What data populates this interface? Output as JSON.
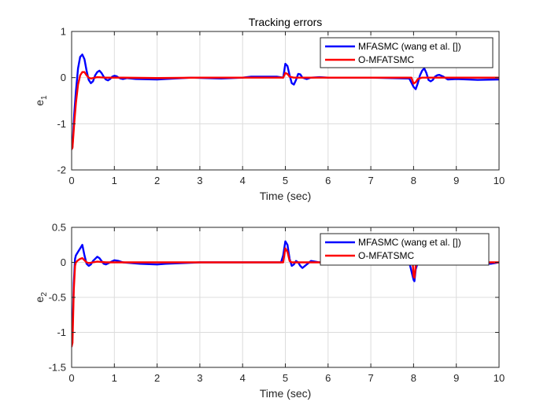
{
  "chart_data": [
    {
      "type": "line",
      "title": "Tracking errors",
      "xlabel": "Time (sec)",
      "ylabel": "e",
      "ylabel_sub": "1",
      "xlim": [
        0,
        10
      ],
      "ylim": [
        -2,
        1
      ],
      "xticks": [
        0,
        1,
        2,
        3,
        4,
        5,
        6,
        7,
        8,
        9,
        10
      ],
      "yticks": [
        -2,
        -1,
        0,
        1
      ],
      "grid": true,
      "legend_position": "top-right",
      "series": [
        {
          "name": "MFASMC (wang et al. [])",
          "color": "#0000ff",
          "x": [
            0,
            0.02,
            0.06,
            0.1,
            0.15,
            0.2,
            0.25,
            0.3,
            0.35,
            0.4,
            0.45,
            0.5,
            0.55,
            0.6,
            0.65,
            0.7,
            0.75,
            0.8,
            0.85,
            0.9,
            0.95,
            1.0,
            1.05,
            1.1,
            1.15,
            1.2,
            1.3,
            1.5,
            2.0,
            2.2,
            2.8,
            3.5,
            4.0,
            4.2,
            4.8,
            4.95,
            5.0,
            5.05,
            5.1,
            5.15,
            5.2,
            5.25,
            5.3,
            5.35,
            5.4,
            5.5,
            5.6,
            5.8,
            6.0,
            7.0,
            7.9,
            8.0,
            8.05,
            8.1,
            8.15,
            8.2,
            8.25,
            8.3,
            8.35,
            8.4,
            8.45,
            8.5,
            8.55,
            8.6,
            8.7,
            8.8,
            9.0,
            9.5,
            10.0
          ],
          "values": [
            -1.55,
            -1.5,
            -0.8,
            -0.3,
            0.2,
            0.45,
            0.5,
            0.4,
            0.15,
            -0.05,
            -0.12,
            -0.08,
            0.05,
            0.12,
            0.15,
            0.1,
            0.02,
            -0.04,
            -0.06,
            -0.03,
            0.02,
            0.04,
            0.03,
            0.0,
            -0.02,
            -0.03,
            -0.01,
            -0.03,
            -0.04,
            -0.03,
            0.0,
            -0.02,
            0.0,
            0.02,
            0.02,
            0.0,
            0.3,
            0.25,
            0.05,
            -0.12,
            -0.15,
            -0.05,
            0.08,
            0.07,
            0.0,
            -0.03,
            0.0,
            0.01,
            0.0,
            0.0,
            -0.02,
            -0.2,
            -0.25,
            -0.12,
            0.05,
            0.15,
            0.2,
            0.1,
            -0.05,
            -0.08,
            -0.05,
            0.02,
            0.05,
            0.06,
            0.02,
            -0.04,
            -0.03,
            -0.05,
            -0.04
          ]
        },
        {
          "name": "O-MFATSMC",
          "color": "#ff0000",
          "x": [
            0,
            0.02,
            0.06,
            0.1,
            0.15,
            0.2,
            0.25,
            0.3,
            0.35,
            0.4,
            0.45,
            0.5,
            0.6,
            0.8,
            1.0,
            1.2,
            2.0,
            3.0,
            4.0,
            4.95,
            5.0,
            5.05,
            5.1,
            5.2,
            5.3,
            6.0,
            7.0,
            7.95,
            8.0,
            8.05,
            8.1,
            8.2,
            9.0,
            10.0
          ],
          "values": [
            -1.55,
            -1.52,
            -1.0,
            -0.55,
            -0.15,
            0.05,
            0.12,
            0.12,
            0.05,
            0.0,
            -0.02,
            -0.01,
            0.01,
            0.0,
            0.0,
            0.0,
            -0.01,
            0.0,
            0.0,
            0.0,
            0.1,
            0.08,
            0.02,
            0.0,
            0.0,
            0.0,
            0.0,
            0.0,
            -0.13,
            -0.1,
            -0.03,
            0.0,
            0.0,
            0.0
          ]
        }
      ]
    },
    {
      "type": "line",
      "title": "",
      "xlabel": "Time (sec)",
      "ylabel": "e",
      "ylabel_sub": "2",
      "xlim": [
        0,
        10
      ],
      "ylim": [
        -1.5,
        0.5
      ],
      "xticks": [
        0,
        1,
        2,
        3,
        4,
        5,
        6,
        7,
        8,
        9,
        10
      ],
      "yticks": [
        -1.5,
        -1,
        -0.5,
        0,
        0.5
      ],
      "grid": true,
      "legend_position": "top-right",
      "series": [
        {
          "name": "MFASMC (wang et al. [])",
          "color": "#0000ff",
          "x": [
            0,
            0.02,
            0.05,
            0.08,
            0.1,
            0.15,
            0.2,
            0.25,
            0.3,
            0.35,
            0.4,
            0.45,
            0.5,
            0.55,
            0.6,
            0.65,
            0.7,
            0.75,
            0.8,
            0.9,
            1.0,
            1.1,
            1.2,
            1.4,
            1.6,
            2.0,
            2.2,
            3.0,
            4.0,
            4.9,
            4.95,
            5.0,
            5.05,
            5.1,
            5.15,
            5.2,
            5.25,
            5.3,
            5.35,
            5.4,
            5.5,
            5.6,
            5.8,
            6.0,
            7.0,
            7.9,
            8.0,
            8.02,
            8.05,
            8.1,
            8.2,
            9.0,
            9.5,
            9.8,
            10.0
          ],
          "values": [
            -1.2,
            -1.0,
            -0.3,
            0.05,
            0.1,
            0.15,
            0.2,
            0.25,
            0.1,
            -0.02,
            -0.05,
            -0.03,
            0.02,
            0.05,
            0.08,
            0.06,
            0.02,
            -0.02,
            -0.03,
            0.0,
            0.03,
            0.02,
            0.0,
            -0.01,
            -0.02,
            -0.03,
            -0.02,
            0.0,
            0.0,
            0.0,
            0.1,
            0.3,
            0.25,
            0.05,
            -0.05,
            -0.03,
            0.02,
            0.0,
            -0.05,
            -0.08,
            -0.03,
            0.02,
            0.0,
            0.0,
            0.0,
            0.0,
            -0.25,
            -0.27,
            -0.1,
            0.0,
            0.0,
            0.0,
            0.0,
            -0.02,
            0.0
          ]
        },
        {
          "name": "O-MFATSMC",
          "color": "#ff0000",
          "x": [
            0,
            0.02,
            0.05,
            0.08,
            0.1,
            0.15,
            0.2,
            0.25,
            0.3,
            0.35,
            0.4,
            0.5,
            0.6,
            0.8,
            1.0,
            2.0,
            3.0,
            4.0,
            4.95,
            5.0,
            5.05,
            5.1,
            5.15,
            5.2,
            6.0,
            7.0,
            7.98,
            8.0,
            8.02,
            8.05,
            8.1,
            9.0,
            10.0
          ],
          "values": [
            -1.2,
            -1.15,
            -0.4,
            -0.05,
            0.0,
            0.03,
            0.05,
            0.06,
            0.03,
            0.0,
            -0.01,
            0.0,
            0.01,
            0.0,
            0.0,
            0.0,
            0.0,
            0.0,
            0.0,
            0.2,
            0.15,
            0.02,
            0.0,
            0.0,
            0.0,
            0.0,
            0.0,
            -0.2,
            -0.22,
            -0.05,
            0.0,
            0.0,
            0.0
          ]
        }
      ]
    }
  ]
}
